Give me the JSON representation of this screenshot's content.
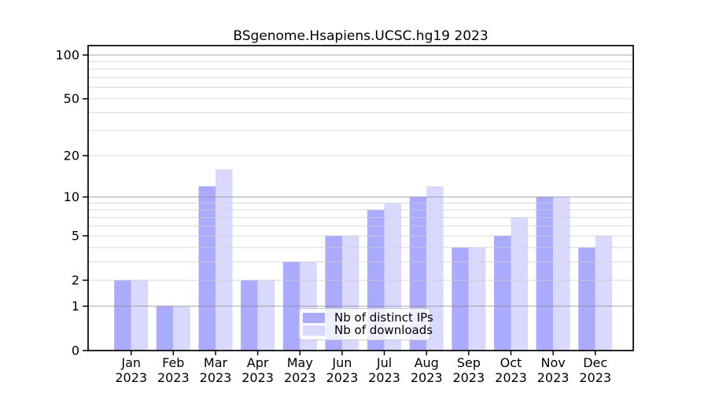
{
  "window": {
    "background": "#ffffff"
  },
  "chart_data": {
    "type": "bar",
    "title": "BSgenome.Hsapiens.UCSC.hg19 2023",
    "categories": [
      "Jan",
      "Feb",
      "Mar",
      "Apr",
      "May",
      "Jun",
      "Jul",
      "Aug",
      "Sep",
      "Oct",
      "Nov",
      "Dec"
    ],
    "x_tick_year": "2023",
    "series": [
      {
        "name": "Nb of distinct IPs",
        "color": "#aaaaff",
        "values": [
          2,
          1,
          12,
          2,
          3,
          5,
          8,
          10,
          4,
          5,
          10,
          4
        ]
      },
      {
        "name": "Nb of downloads",
        "color": "#d9d9ff",
        "values": [
          2,
          1,
          16,
          2,
          3,
          5,
          9,
          12,
          4,
          7,
          10,
          5
        ]
      }
    ],
    "y_scale": "log10(1+y)",
    "y_tick_values": [
      0,
      1,
      2,
      5,
      10,
      20,
      50,
      100
    ],
    "major_gridlines": [
      1,
      10,
      100
    ],
    "minor_gridlines": [
      2,
      3,
      4,
      5,
      6,
      7,
      8,
      9,
      20,
      30,
      40,
      50,
      60,
      70,
      80,
      90
    ],
    "ylim": [
      0,
      116
    ],
    "grid": "on",
    "legend_position": "lower center"
  },
  "colors": {
    "bar_distinct_ips": "#aaaaff",
    "bar_downloads": "#d9d9ff",
    "major_grid": "#8a8a8a",
    "minor_grid": "#cfcfcf",
    "axis": "#000000",
    "legend_border": "#cccccc"
  }
}
